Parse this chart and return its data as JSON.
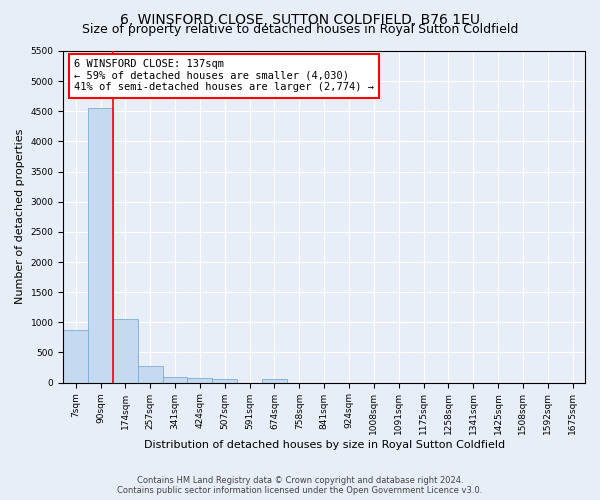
{
  "title": "6, WINSFORD CLOSE, SUTTON COLDFIELD, B76 1EU",
  "subtitle": "Size of property relative to detached houses in Royal Sutton Coldfield",
  "xlabel": "Distribution of detached houses by size in Royal Sutton Coldfield",
  "ylabel": "Number of detached properties",
  "footer_line1": "Contains HM Land Registry data © Crown copyright and database right 2024.",
  "footer_line2": "Contains public sector information licensed under the Open Government Licence v3.0.",
  "bar_labels": [
    "7sqm",
    "90sqm",
    "174sqm",
    "257sqm",
    "341sqm",
    "424sqm",
    "507sqm",
    "591sqm",
    "674sqm",
    "758sqm",
    "841sqm",
    "924sqm",
    "1008sqm",
    "1091sqm",
    "1175sqm",
    "1258sqm",
    "1341sqm",
    "1425sqm",
    "1508sqm",
    "1592sqm",
    "1675sqm"
  ],
  "bar_values": [
    880,
    4550,
    1060,
    275,
    90,
    80,
    55,
    0,
    55,
    0,
    0,
    0,
    0,
    0,
    0,
    0,
    0,
    0,
    0,
    0,
    0
  ],
  "bar_color": "#c5d9f0",
  "bar_edge_color": "#7aadd4",
  "annotation_box_text": "6 WINSFORD CLOSE: 137sqm\n← 59% of detached houses are smaller (4,030)\n41% of semi-detached houses are larger (2,774) →",
  "annotation_box_color": "red",
  "annotation_box_fill": "white",
  "vline_color": "red",
  "ylim": [
    0,
    5500
  ],
  "yticks": [
    0,
    500,
    1000,
    1500,
    2000,
    2500,
    3000,
    3500,
    4000,
    4500,
    5000,
    5500
  ],
  "bg_color": "#e8eef8",
  "plot_bg_color": "#e8eef8",
  "grid_color": "white",
  "title_fontsize": 10,
  "subtitle_fontsize": 9,
  "axis_label_fontsize": 8,
  "tick_fontsize": 6.5,
  "annotation_fontsize": 7.5,
  "footer_fontsize": 6
}
